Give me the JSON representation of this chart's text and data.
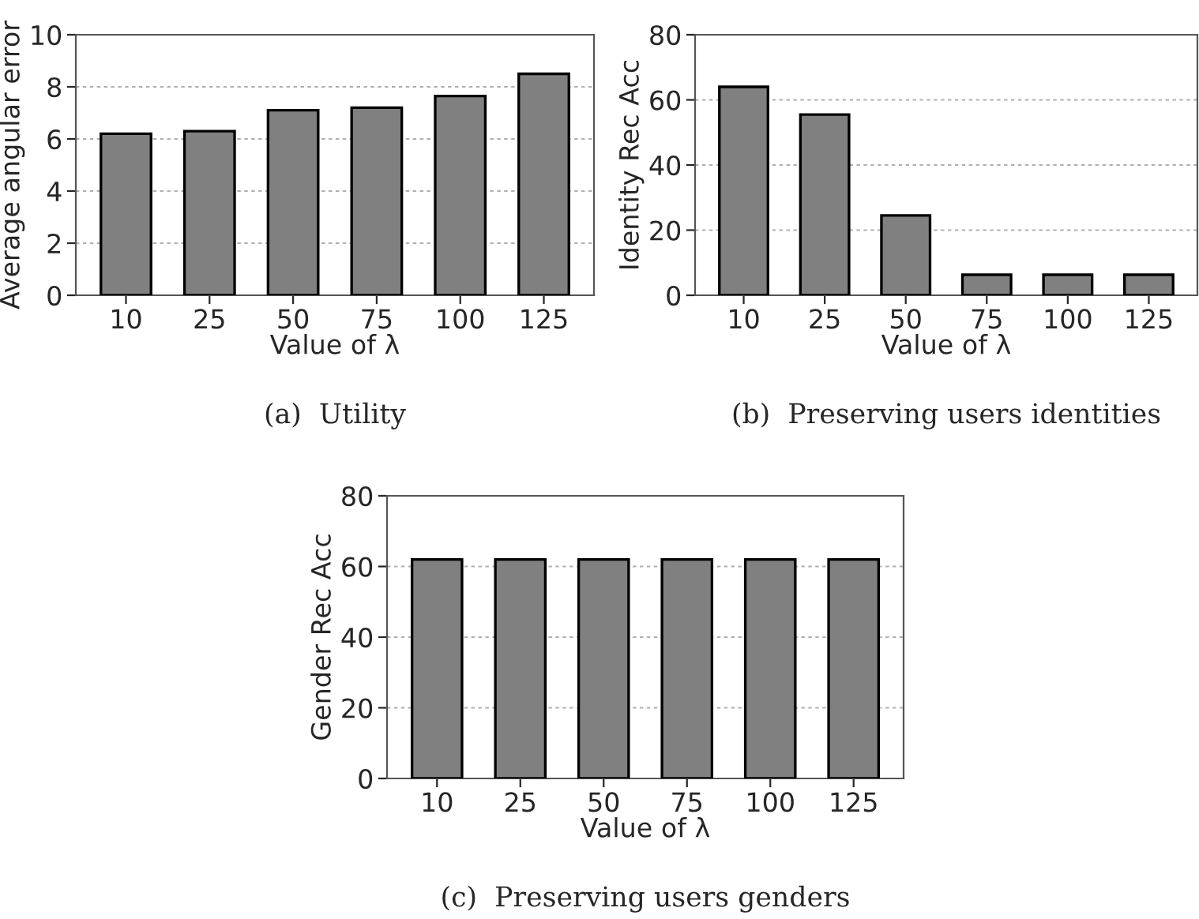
{
  "chart_data": [
    {
      "type": "bar",
      "xlabel": "Value of λ",
      "ylabel": "Average angular error",
      "categories": [
        "10",
        "25",
        "50",
        "75",
        "100",
        "125"
      ],
      "values": [
        6.2,
        6.3,
        7.1,
        7.2,
        7.65,
        8.5
      ],
      "color": "#808080",
      "ylim": [
        0,
        10
      ],
      "yticks": [
        0,
        2,
        4,
        6,
        8,
        10
      ],
      "grid": "y",
      "annotations": [
        "(a)  Utility"
      ]
    },
    {
      "type": "bar",
      "xlabel": "Value of λ",
      "ylabel": "Identity Rec Acc",
      "categories": [
        "10",
        "25",
        "50",
        "75",
        "100",
        "125"
      ],
      "values": [
        64,
        55.5,
        24.5,
        6.3,
        6.3,
        6.3
      ],
      "color": "#808080",
      "ylim": [
        0,
        80
      ],
      "yticks": [
        0,
        20,
        40,
        60,
        80
      ],
      "grid": "y",
      "annotations": [
        "(b)  Preserving users identities"
      ]
    },
    {
      "type": "bar",
      "xlabel": "Value of λ",
      "ylabel": "Gender Rec Acc",
      "categories": [
        "10",
        "25",
        "50",
        "75",
        "100",
        "125"
      ],
      "values": [
        62,
        62,
        62,
        62,
        62,
        62
      ],
      "color": "#808080",
      "ylim": [
        0,
        80
      ],
      "yticks": [
        0,
        20,
        40,
        60,
        80
      ],
      "grid": "y",
      "annotations": [
        "(c)  Preserving users genders"
      ]
    }
  ]
}
